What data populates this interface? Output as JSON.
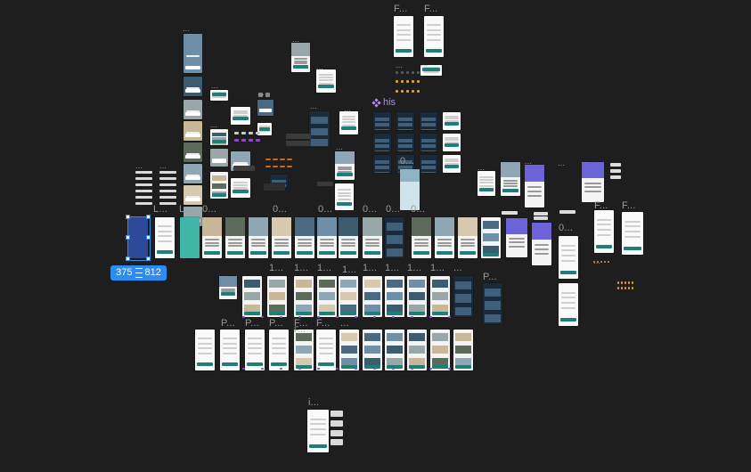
{
  "canvas": {
    "background": "#1e1e1e",
    "label_color": "#9a9a9a",
    "accent": "#2c8cf4",
    "component_color": "#b28cf0"
  },
  "selection": {
    "width": "375",
    "height": "812"
  },
  "component_label": "his",
  "labels": {
    "l01": "...",
    "l02": "...",
    "l03": "...",
    "l04": "...",
    "l05": "...",
    "l06": "...",
    "l07": "F...",
    "l08": "F...",
    "l09": "...",
    "l10": "...",
    "l11": "...",
    "l12": "...",
    "l13": "...",
    "l14": "...",
    "l15": "...",
    "l16": "0...",
    "l17": "...",
    "l18": "...",
    "l19": "...",
    "l20": "L...",
    "l21": "L...",
    "l22": "0...",
    "l23": "0...",
    "l24": "0...",
    "l25": "0...",
    "l26": "0...",
    "l27": "0...",
    "l28": "0...",
    "l29": "...",
    "l30": "F...",
    "l31": "F...",
    "l32": "...",
    "l33": "1...",
    "l34": "1...",
    "l35": "1...",
    "l36": "1...",
    "l37": "1...",
    "l38": "1...",
    "l39": "1...",
    "l40": "1...",
    "l41": "P...",
    "l42": "P...",
    "l43": "P...",
    "l44": "F...",
    "l45": "F...",
    "l46": "...",
    "l47": "i...",
    "l48": "...",
    "l49": "P...",
    "l50": "...",
    "l51": "F..."
  },
  "frame_accent": "#1e7f78"
}
